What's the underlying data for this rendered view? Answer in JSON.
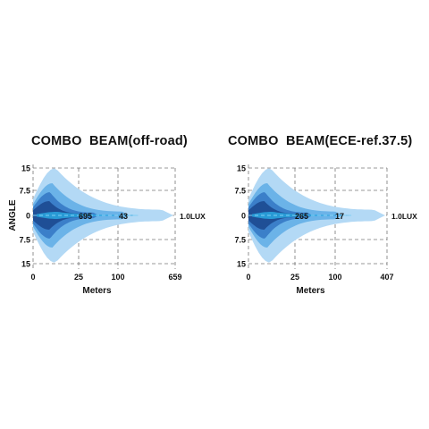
{
  "chart_data": [
    {
      "type": "area",
      "title": "COMBO  BEAM(off-road)",
      "xlabel": "Meters",
      "ylabel": "ANGLE",
      "x_ticks": [
        "0",
        "25",
        "100",
        "659"
      ],
      "y_ticks": [
        "15",
        "7.5",
        "0",
        "7.5",
        "15"
      ],
      "contour_labels": [
        "695",
        "43"
      ],
      "end_label": "1.0LUX",
      "grid": true,
      "colors": [
        "#b3d9f5",
        "#6bb3e8",
        "#3b7fc9",
        "#1f4f96"
      ]
    },
    {
      "type": "area",
      "title": "COMBO  BEAM(ECE-ref.37.5)",
      "xlabel": "Meters",
      "ylabel": "",
      "x_ticks": [
        "0",
        "25",
        "100",
        "407"
      ],
      "y_ticks": [
        "15",
        "7.5",
        "0",
        "7.5",
        "15"
      ],
      "contour_labels": [
        "265",
        "17"
      ],
      "end_label": "1.0LUX",
      "grid": true,
      "colors": [
        "#b3d9f5",
        "#6bb3e8",
        "#3b7fc9",
        "#1f4f96"
      ]
    }
  ]
}
